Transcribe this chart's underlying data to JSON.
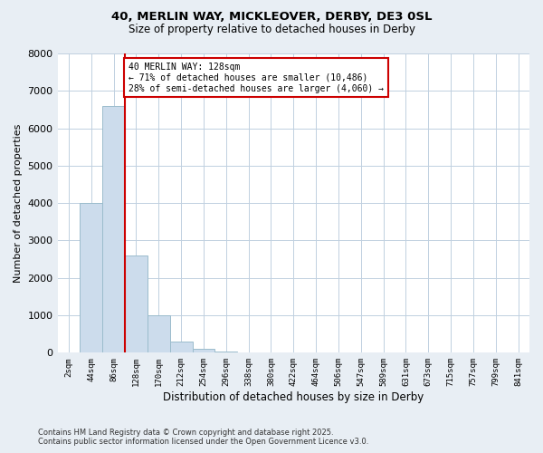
{
  "title_line1": "40, MERLIN WAY, MICKLEOVER, DERBY, DE3 0SL",
  "title_line2": "Size of property relative to detached houses in Derby",
  "xlabel": "Distribution of detached houses by size in Derby",
  "ylabel": "Number of detached properties",
  "categories": [
    "2sqm",
    "44sqm",
    "86sqm",
    "128sqm",
    "170sqm",
    "212sqm",
    "254sqm",
    "296sqm",
    "338sqm",
    "380sqm",
    "422sqm",
    "464sqm",
    "506sqm",
    "547sqm",
    "589sqm",
    "631sqm",
    "673sqm",
    "715sqm",
    "757sqm",
    "799sqm",
    "841sqm"
  ],
  "values": [
    0,
    4000,
    6600,
    2600,
    1000,
    300,
    100,
    30,
    10,
    5,
    2,
    1,
    0,
    0,
    0,
    0,
    0,
    0,
    0,
    0,
    0
  ],
  "bar_color": "#ccdcec",
  "bar_edge_color": "#9bbccc",
  "vline_color": "#cc0000",
  "annotation_text": "40 MERLIN WAY: 128sqm\n← 71% of detached houses are smaller (10,486)\n28% of semi-detached houses are larger (4,060) →",
  "annotation_box_color": "#cc0000",
  "annotation_text_color": "#000000",
  "ylim": [
    0,
    8000
  ],
  "yticks": [
    0,
    1000,
    2000,
    3000,
    4000,
    5000,
    6000,
    7000,
    8000
  ],
  "footer_line1": "Contains HM Land Registry data © Crown copyright and database right 2025.",
  "footer_line2": "Contains public sector information licensed under the Open Government Licence v3.0.",
  "background_color": "#e8eef4",
  "plot_bg_color": "#ffffff",
  "grid_color": "#c0d0e0"
}
